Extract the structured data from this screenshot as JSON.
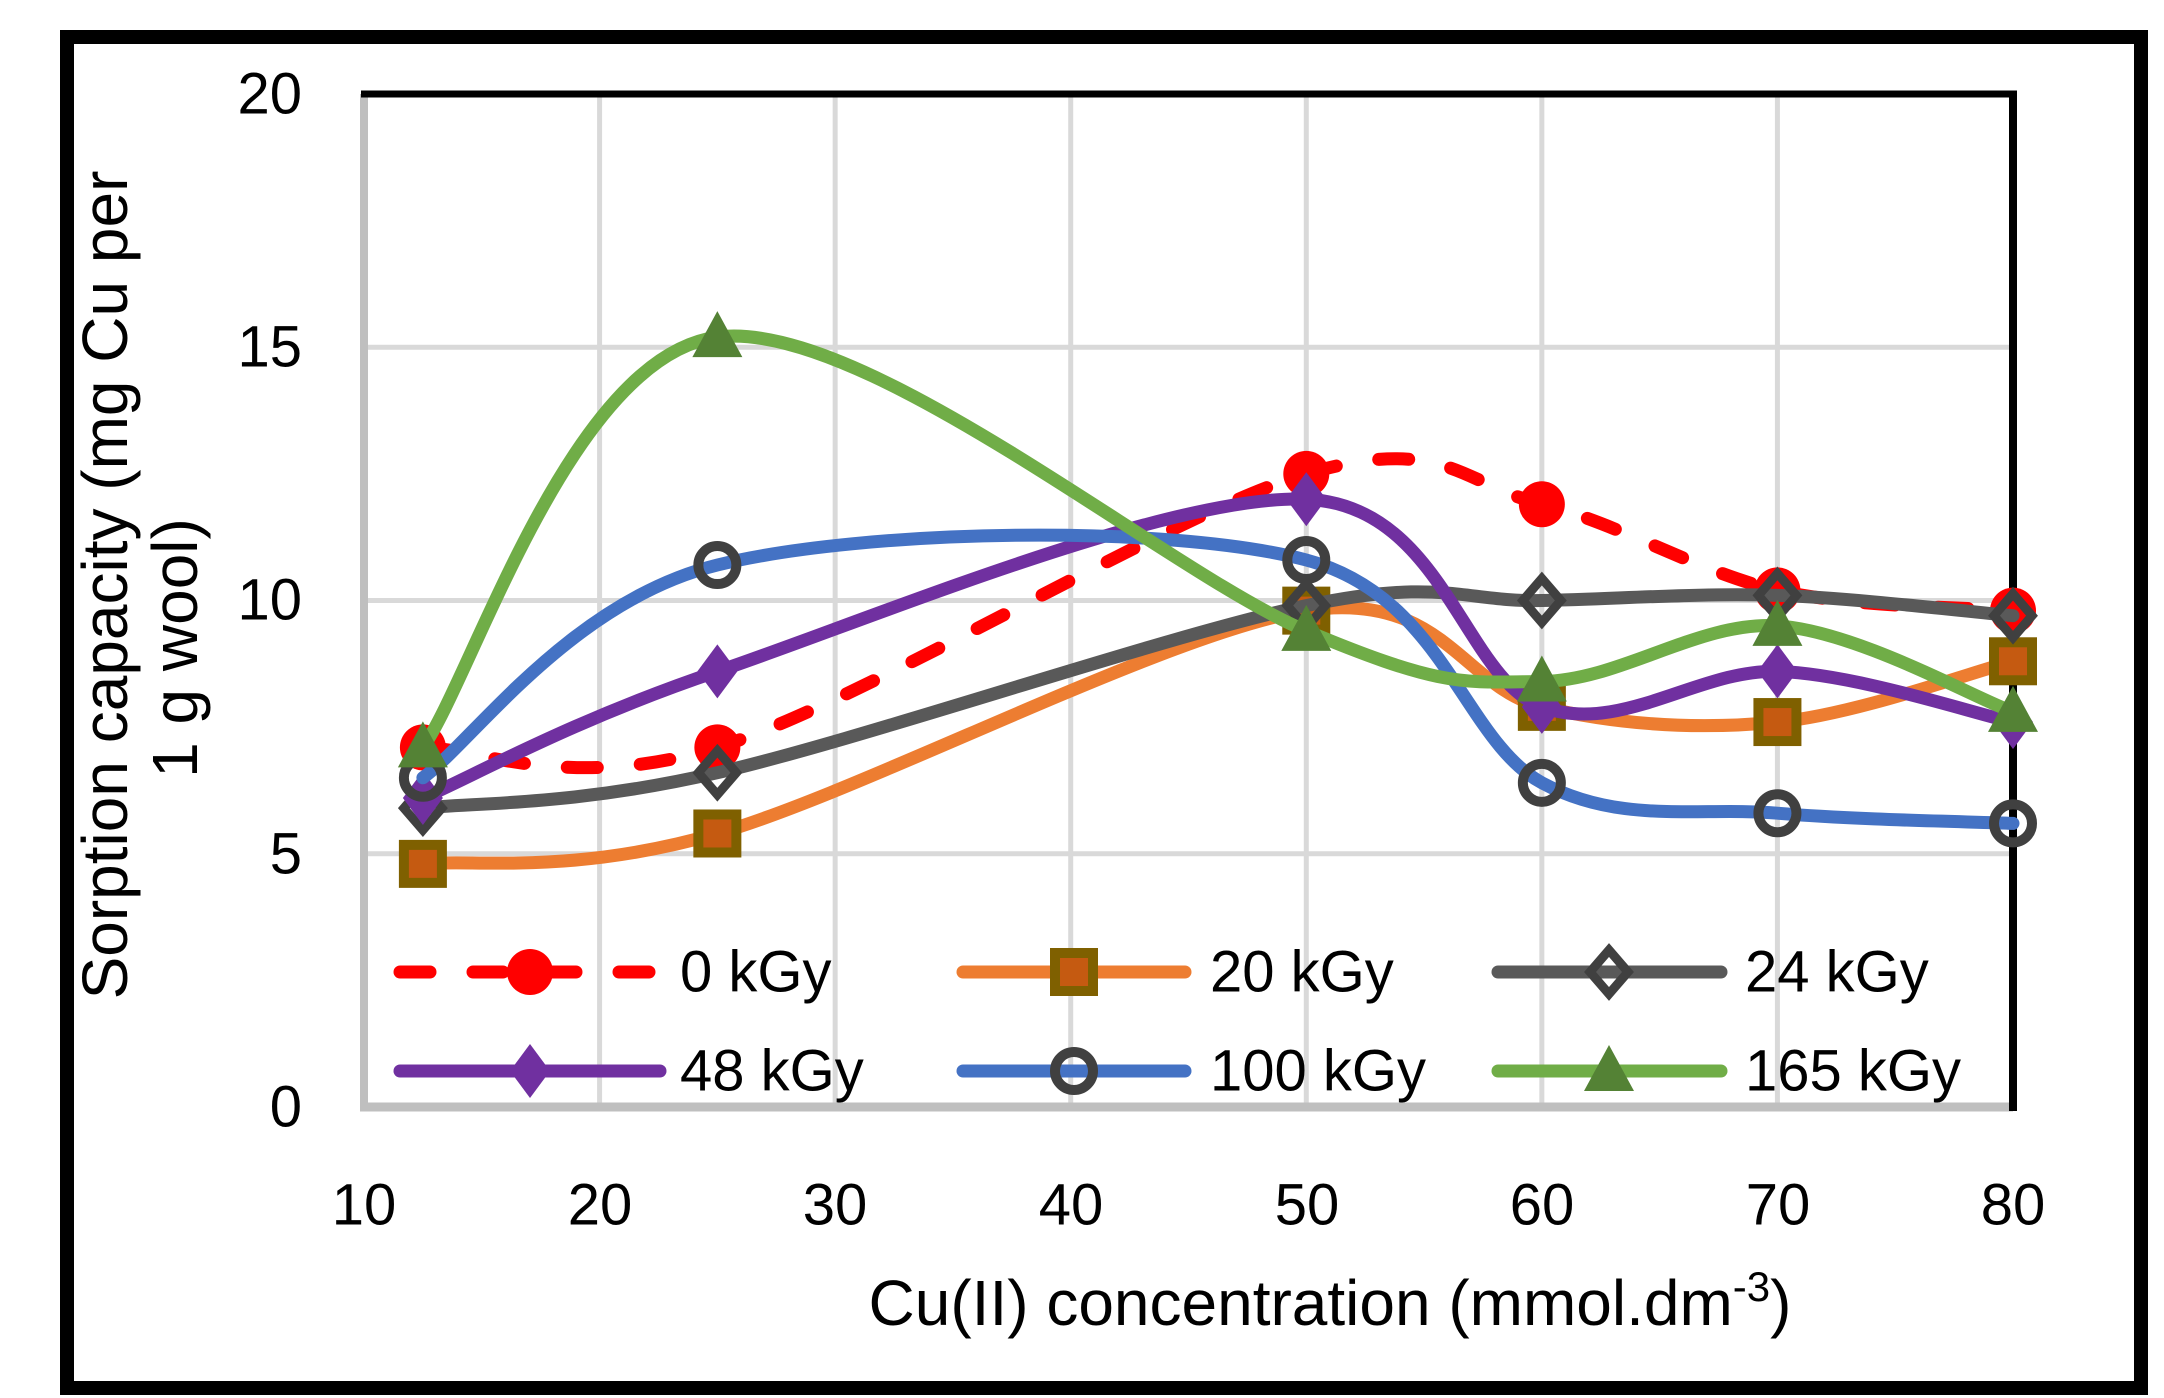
{
  "figure": {
    "background": "#FFFFFF",
    "outer_border_color": "#000000"
  },
  "style": {
    "gridline_color": "#D9D9D9",
    "axis_line_color": "#BFBFBF",
    "plot_border_color": "#000000",
    "text_color": "#000000",
    "marker_outline_color": "#404040"
  },
  "chart_data": {
    "type": "line",
    "title": "",
    "x": [
      12.5,
      25,
      50,
      60,
      70,
      80
    ],
    "xlim": [
      10,
      80
    ],
    "ylim": [
      0,
      20
    ],
    "xticks": [
      10,
      20,
      30,
      40,
      50,
      60,
      70,
      80
    ],
    "yticks": [
      20,
      15,
      10,
      5,
      0
    ],
    "grid": true,
    "legend_position": "inside-bottom",
    "xlabel_main": "Cu(II) concentration (mmol.dm",
    "xlabel_superscript": "-3",
    "xlabel_suffix": ")",
    "ylabel_line1": "Sorption capacity (mg Cu per",
    "ylabel_line2": "1 g wool)",
    "series": [
      {
        "name": "0 kGy",
        "color": "#FF0000",
        "dashed": true,
        "marker": "circle",
        "marker_fill": "#FF0000",
        "marker_stroke": "none",
        "values": [
          7.1,
          7.1,
          12.5,
          11.9,
          10.2,
          9.8
        ]
      },
      {
        "name": "20 kGy",
        "color": "#ED7D31",
        "dashed": false,
        "marker": "square",
        "marker_fill": "#C55A11",
        "marker_stroke": "#7F6000",
        "values": [
          4.8,
          5.4,
          9.8,
          7.9,
          7.6,
          8.8
        ]
      },
      {
        "name": "24 kGy",
        "color": "#595959",
        "dashed": false,
        "marker": "diamond-open",
        "marker_fill": "none",
        "marker_stroke": "#404040",
        "values": [
          5.9,
          6.6,
          9.9,
          10.0,
          10.1,
          9.7
        ]
      },
      {
        "name": "48 kGy",
        "color": "#7030A0",
        "dashed": false,
        "marker": "diamond",
        "marker_fill": "#7030A0",
        "marker_stroke": "none",
        "values": [
          6.1,
          8.6,
          12.0,
          7.9,
          8.6,
          7.6
        ]
      },
      {
        "name": "100 kGy",
        "color": "#4472C4",
        "dashed": false,
        "marker": "circle-open",
        "marker_fill": "none",
        "marker_stroke": "#404040",
        "values": [
          6.5,
          10.7,
          10.8,
          6.4,
          5.8,
          5.6
        ]
      },
      {
        "name": "165 kGy",
        "color": "#70AD47",
        "dashed": false,
        "marker": "triangle",
        "marker_fill": "#548235",
        "marker_stroke": "none",
        "values": [
          7.1,
          15.2,
          9.4,
          8.4,
          9.5,
          7.8
        ]
      }
    ]
  }
}
